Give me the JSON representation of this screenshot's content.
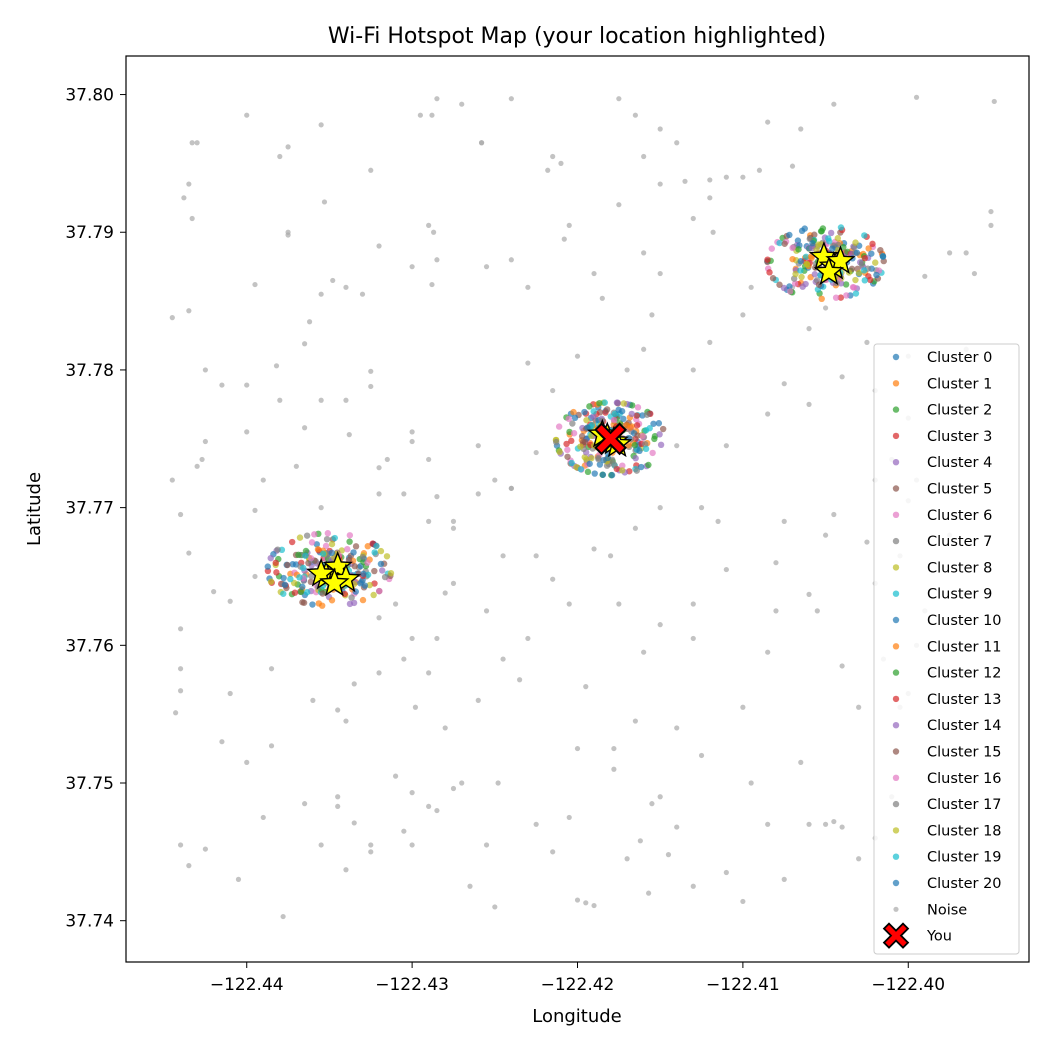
{
  "chart_data": {
    "type": "scatter",
    "title": "Wi-Fi Hotspot Map (your location highlighted)",
    "xlabel": "Longitude",
    "ylabel": "Latitude",
    "xlim": [
      -122.4473,
      -122.3927
    ],
    "ylim": [
      37.737,
      37.8028
    ],
    "xticks": [
      -122.44,
      -122.43,
      -122.42,
      -122.41,
      -122.4
    ],
    "xtick_labels": [
      "−122.44",
      "−122.43",
      "−122.42",
      "−122.41",
      "−122.40"
    ],
    "yticks": [
      37.74,
      37.75,
      37.76,
      37.77,
      37.78,
      37.79,
      37.8
    ],
    "ytick_labels": [
      "37.74",
      "37.75",
      "37.76",
      "37.77",
      "37.78",
      "37.79",
      "37.80"
    ],
    "grid": false,
    "legend_position": "lower-right",
    "colors": {
      "palette": [
        "#1f77b4",
        "#ff7f0e",
        "#2ca02c",
        "#d62728",
        "#9467bd",
        "#8c564b",
        "#e377c2",
        "#7f7f7f",
        "#bcbd22",
        "#17becf"
      ],
      "noise": "#a9a9a9",
      "you": "#ff0000",
      "centroid": "#ffff00"
    },
    "legend": [
      "Cluster 0",
      "Cluster 1",
      "Cluster 2",
      "Cluster 3",
      "Cluster 4",
      "Cluster 5",
      "Cluster 6",
      "Cluster 7",
      "Cluster 8",
      "Cluster 9",
      "Cluster 10",
      "Cluster 11",
      "Cluster 12",
      "Cluster 13",
      "Cluster 14",
      "Cluster 15",
      "Cluster 16",
      "Cluster 17",
      "Cluster 18",
      "Cluster 19",
      "Cluster 20",
      "Noise",
      "You"
    ],
    "hotspot_groups": [
      {
        "center": [
          -122.435,
          37.7655
        ],
        "spread": [
          0.0034,
          0.0024
        ],
        "points_per_cluster": 12
      },
      {
        "center": [
          -122.418,
          37.775
        ],
        "spread": [
          0.003,
          0.0024
        ],
        "points_per_cluster": 13
      },
      {
        "center": [
          -122.405,
          37.7878
        ],
        "spread": [
          0.0032,
          0.0024
        ],
        "points_per_cluster": 12
      }
    ],
    "cluster_centroids": [
      [
        -122.4352,
        37.765
      ],
      [
        -122.4345,
        37.7657
      ],
      [
        -122.434,
        37.7648
      ],
      [
        -122.4355,
        37.7652
      ],
      [
        -122.4347,
        37.7645
      ],
      [
        -122.4182,
        37.7751
      ],
      [
        -122.4178,
        37.7748
      ],
      [
        -122.4185,
        37.7753
      ],
      [
        -122.4176,
        37.7746
      ],
      [
        -122.4051,
        37.7882
      ],
      [
        -122.4045,
        37.7875
      ],
      [
        -122.4041,
        37.7879
      ],
      [
        -122.4048,
        37.7871
      ]
    ],
    "noise_points": [
      [
        -122.4445,
        37.7838
      ],
      [
        -122.4435,
        37.7935
      ],
      [
        -122.4433,
        37.7965
      ],
      [
        -122.443,
        37.7965
      ],
      [
        -122.4438,
        37.7925
      ],
      [
        -122.4433,
        37.791
      ],
      [
        -122.44,
        37.7985
      ],
      [
        -122.438,
        37.7955
      ],
      [
        -122.4375,
        37.7962
      ],
      [
        -122.4355,
        37.7978
      ],
      [
        -122.4353,
        37.7922
      ],
      [
        -122.4375,
        37.79
      ],
      [
        -122.4375,
        37.7898
      ],
      [
        -122.4348,
        37.7865
      ],
      [
        -122.4355,
        37.7855
      ],
      [
        -122.434,
        37.786
      ],
      [
        -122.433,
        37.7855
      ],
      [
        -122.4325,
        37.7945
      ],
      [
        -122.432,
        37.789
      ],
      [
        -122.43,
        37.7875
      ],
      [
        -122.4295,
        37.7985
      ],
      [
        -122.4285,
        37.7997
      ],
      [
        -122.4288,
        37.7985
      ],
      [
        -122.427,
        37.7993
      ],
      [
        -122.429,
        37.7905
      ],
      [
        -122.4287,
        37.79
      ],
      [
        -122.4285,
        37.788
      ],
      [
        -122.4288,
        37.7862
      ],
      [
        -122.4258,
        37.7965
      ],
      [
        -122.4258,
        37.7965
      ],
      [
        -122.424,
        37.7997
      ],
      [
        -122.4255,
        37.7875
      ],
      [
        -122.424,
        37.788
      ],
      [
        -122.4215,
        37.7955
      ],
      [
        -122.423,
        37.786
      ],
      [
        -122.4218,
        37.7945
      ],
      [
        -122.421,
        37.795
      ],
      [
        -122.4208,
        37.7895
      ],
      [
        -122.4205,
        37.7905
      ],
      [
        -122.419,
        37.787
      ],
      [
        -122.4175,
        37.7997
      ],
      [
        -122.4165,
        37.7985
      ],
      [
        -122.415,
        37.7975
      ],
      [
        -122.416,
        37.7955
      ],
      [
        -122.415,
        37.7935
      ],
      [
        -122.414,
        37.7965
      ],
      [
        -122.4135,
        37.7937
      ],
      [
        -122.412,
        37.7938
      ],
      [
        -122.4118,
        37.79
      ],
      [
        -122.41,
        37.794
      ],
      [
        -122.4085,
        37.798
      ],
      [
        -122.407,
        37.7948
      ],
      [
        -122.416,
        37.7885
      ],
      [
        -122.4155,
        37.784
      ],
      [
        -122.4175,
        37.792
      ],
      [
        -122.4185,
        37.7852
      ],
      [
        -122.4425,
        37.78
      ],
      [
        -122.4415,
        37.7789
      ],
      [
        -122.44,
        37.7789
      ],
      [
        -122.4382,
        37.7803
      ],
      [
        -122.4355,
        37.7778
      ],
      [
        -122.4365,
        37.7819
      ],
      [
        -122.4362,
        37.7835
      ],
      [
        -122.4395,
        37.7862
      ],
      [
        -122.4435,
        37.7843
      ],
      [
        -122.4445,
        37.772
      ],
      [
        -122.444,
        37.7695
      ],
      [
        -122.4425,
        37.7748
      ],
      [
        -122.443,
        37.773
      ],
      [
        -122.4435,
        37.7667
      ],
      [
        -122.4427,
        37.7735
      ],
      [
        -122.44,
        37.7755
      ],
      [
        -122.4395,
        37.7698
      ],
      [
        -122.438,
        37.7778
      ],
      [
        -122.4365,
        37.7758
      ],
      [
        -122.434,
        37.7778
      ],
      [
        -122.4338,
        37.7753
      ],
      [
        -122.4325,
        37.7799
      ],
      [
        -122.4325,
        37.7788
      ],
      [
        -122.432,
        37.7729
      ],
      [
        -122.4315,
        37.7735
      ],
      [
        -122.43,
        37.7755
      ],
      [
        -122.43,
        37.7748
      ],
      [
        -122.429,
        37.7735
      ],
      [
        -122.4285,
        37.7708
      ],
      [
        -122.4275,
        37.7685
      ],
      [
        -122.426,
        37.7745
      ],
      [
        -122.4245,
        37.7665
      ],
      [
        -122.424,
        37.7714
      ],
      [
        -122.4225,
        37.7665
      ],
      [
        -122.4215,
        37.7648
      ],
      [
        -122.4275,
        37.7645
      ],
      [
        -122.428,
        37.7638
      ],
      [
        -122.43,
        37.7605
      ],
      [
        -122.4285,
        37.7605
      ],
      [
        -122.4298,
        37.7555
      ],
      [
        -122.4305,
        37.759
      ],
      [
        -122.432,
        37.758
      ],
      [
        -122.4335,
        37.7572
      ],
      [
        -122.434,
        37.7545
      ],
      [
        -122.4345,
        37.7553
      ],
      [
        -122.4385,
        37.7583
      ],
      [
        -122.441,
        37.7565
      ],
      [
        -122.444,
        37.7583
      ],
      [
        -122.444,
        37.7567
      ],
      [
        -122.4443,
        37.7551
      ],
      [
        -122.4415,
        37.753
      ],
      [
        -122.44,
        37.7515
      ],
      [
        -122.4385,
        37.7527
      ],
      [
        -122.436,
        37.756
      ],
      [
        -122.4345,
        37.7483
      ],
      [
        -122.4335,
        37.7471
      ],
      [
        -122.4325,
        37.7455
      ],
      [
        -122.4305,
        37.7465
      ],
      [
        -122.43,
        37.7455
      ],
      [
        -122.4285,
        37.748
      ],
      [
        -122.4265,
        37.7425
      ],
      [
        -122.4255,
        37.7455
      ],
      [
        -122.425,
        37.741
      ],
      [
        -122.4248,
        37.75
      ],
      [
        -122.4225,
        37.747
      ],
      [
        -122.4215,
        37.745
      ],
      [
        -122.4205,
        37.7475
      ],
      [
        -122.42,
        37.7415
      ],
      [
        -122.4195,
        37.7413
      ],
      [
        -122.419,
        37.7411
      ],
      [
        -122.4178,
        37.7525
      ],
      [
        -122.4178,
        37.751
      ],
      [
        -122.417,
        37.7445
      ],
      [
        -122.4162,
        37.7458
      ],
      [
        -122.4157,
        37.742
      ],
      [
        -122.4155,
        37.7485
      ],
      [
        -122.415,
        37.749
      ],
      [
        -122.4145,
        37.7448
      ],
      [
        -122.414,
        37.7468
      ],
      [
        -122.413,
        37.7425
      ],
      [
        -122.411,
        37.7435
      ],
      [
        -122.41,
        37.7414
      ],
      [
        -122.4085,
        37.747
      ],
      [
        -122.4075,
        37.743
      ],
      [
        -122.406,
        37.747
      ],
      [
        -122.405,
        37.747
      ],
      [
        -122.4045,
        37.7472
      ],
      [
        -122.404,
        37.7468
      ],
      [
        -122.403,
        37.7445
      ],
      [
        -122.402,
        37.746
      ],
      [
        -122.401,
        37.749
      ],
      [
        -122.4005,
        37.7555
      ],
      [
        -122.444,
        37.7455
      ],
      [
        -122.4435,
        37.744
      ],
      [
        -122.4425,
        37.7452
      ],
      [
        -122.4405,
        37.743
      ],
      [
        -122.439,
        37.7475
      ],
      [
        -122.4378,
        37.7403
      ],
      [
        -122.4365,
        37.7485
      ],
      [
        -122.4355,
        37.7455
      ],
      [
        -122.4345,
        37.749
      ],
      [
        -122.434,
        37.7437
      ],
      [
        -122.4325,
        37.745
      ],
      [
        -122.431,
        37.7505
      ],
      [
        -122.43,
        37.7493
      ],
      [
        -122.429,
        37.7483
      ],
      [
        -122.4275,
        37.7496
      ],
      [
        -122.42,
        37.7525
      ],
      [
        -122.416,
        37.7595
      ],
      [
        -122.413,
        37.7605
      ],
      [
        -122.41,
        37.7555
      ],
      [
        -122.4085,
        37.7595
      ],
      [
        -122.406,
        37.7637
      ],
      [
        -122.404,
        37.7585
      ],
      [
        -122.403,
        37.7555
      ],
      [
        -122.402,
        37.7645
      ],
      [
        -122.4015,
        37.759
      ],
      [
        -122.4,
        37.7565
      ],
      [
        -122.3995,
        37.76
      ],
      [
        -122.3985,
        37.758
      ],
      [
        -122.408,
        37.766
      ],
      [
        -122.4075,
        37.769
      ],
      [
        -122.405,
        37.768
      ],
      [
        -122.4045,
        37.7695
      ],
      [
        -122.402,
        37.772
      ],
      [
        -122.401,
        37.7735
      ],
      [
        -122.4,
        37.7705
      ],
      [
        -122.3995,
        37.772
      ],
      [
        -122.411,
        37.7745
      ],
      [
        -122.4085,
        37.7768
      ],
      [
        -122.4075,
        37.779
      ],
      [
        -122.406,
        37.7775
      ],
      [
        -122.404,
        37.7795
      ],
      [
        -122.402,
        37.7785
      ],
      [
        -122.4,
        37.7765
      ],
      [
        -122.3985,
        37.775
      ],
      [
        -122.413,
        37.78
      ],
      [
        -122.412,
        37.782
      ],
      [
        -122.41,
        37.784
      ],
      [
        -122.407,
        37.786
      ],
      [
        -122.406,
        37.783
      ],
      [
        -122.399,
        37.7868
      ],
      [
        -122.3975,
        37.7885
      ],
      [
        -122.3965,
        37.7885
      ],
      [
        -122.396,
        37.787
      ],
      [
        -122.395,
        37.7915
      ],
      [
        -122.395,
        37.7905
      ],
      [
        -122.3948,
        37.7995
      ],
      [
        -122.3995,
        37.7998
      ],
      [
        -122.4045,
        37.7993
      ],
      [
        -122.4065,
        37.7975
      ],
      [
        -122.409,
        37.7945
      ],
      [
        -122.411,
        37.794
      ],
      [
        -122.412,
        37.7925
      ],
      [
        -122.413,
        37.791
      ],
      [
        -122.415,
        37.787
      ],
      [
        -122.416,
        37.7815
      ],
      [
        -122.417,
        37.78
      ],
      [
        -122.42,
        37.781
      ],
      [
        -122.4215,
        37.7785
      ],
      [
        -122.423,
        37.7805
      ],
      [
        -122.424,
        37.7714
      ],
      [
        -122.425,
        37.772
      ],
      [
        -122.4225,
        37.774
      ],
      [
        -122.414,
        37.7745
      ],
      [
        -122.4125,
        37.77
      ],
      [
        -122.4115,
        37.769
      ],
      [
        -122.413,
        37.763
      ],
      [
        -122.415,
        37.7615
      ],
      [
        -122.4175,
        37.763
      ],
      [
        -122.419,
        37.767
      ],
      [
        -122.4205,
        37.763
      ],
      [
        -122.423,
        37.7605
      ],
      [
        -122.4245,
        37.759
      ],
      [
        -122.426,
        37.756
      ],
      [
        -122.427,
        37.75
      ],
      [
        -122.428,
        37.754
      ],
      [
        -122.444,
        37.7612
      ],
      [
        -122.442,
        37.7639
      ],
      [
        -122.441,
        37.7632
      ],
      [
        -122.439,
        37.772
      ],
      [
        -122.437,
        37.773
      ],
      [
        -122.4355,
        37.77
      ],
      [
        -122.432,
        37.771
      ],
      [
        -122.4305,
        37.771
      ],
      [
        -122.429,
        37.769
      ],
      [
        -122.4275,
        37.769
      ],
      [
        -122.426,
        37.771
      ],
      [
        -122.4395,
        37.765
      ],
      [
        -122.431,
        37.763
      ],
      [
        -122.429,
        37.758
      ],
      [
        -122.432,
        37.762
      ],
      [
        -122.4255,
        37.7625
      ],
      [
        -122.4235,
        37.7575
      ],
      [
        -122.4195,
        37.757
      ],
      [
        -122.4165,
        37.7545
      ],
      [
        -122.414,
        37.754
      ],
      [
        -122.4125,
        37.752
      ],
      [
        -122.4095,
        37.75
      ],
      [
        -122.4065,
        37.7515
      ],
      [
        -122.418,
        37.7665
      ],
      [
        -122.4165,
        37.7685
      ],
      [
        -122.415,
        37.77
      ],
      [
        -122.411,
        37.7655
      ],
      [
        -122.408,
        37.7625
      ],
      [
        -122.4055,
        37.7625
      ],
      [
        -122.4025,
        37.7675
      ],
      [
        -122.4005,
        37.7665
      ],
      [
        -122.399,
        37.7625
      ],
      [
        -122.3975,
        37.768
      ],
      [
        -122.397,
        37.7735
      ],
      [
        -122.3965,
        37.7815
      ],
      [
        -122.4,
        37.781
      ],
      [
        -122.4025,
        37.782
      ],
      [
        -122.405,
        37.7845
      ],
      [
        -122.4095,
        37.786
      ]
    ],
    "you": [
      -122.418,
      37.775
    ]
  }
}
